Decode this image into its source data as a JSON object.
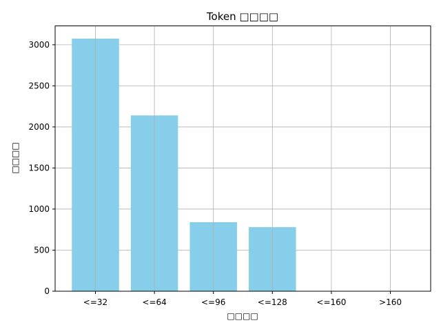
{
  "chart_data": {
    "type": "bar",
    "title": "Token □□□□",
    "xlabel": "□□□□",
    "ylabel": "□□□□",
    "categories": [
      "<=32",
      "<=64",
      "<=96",
      "<=128",
      "<=160",
      ">160"
    ],
    "values": [
      3075,
      2140,
      840,
      780,
      0,
      0
    ],
    "ylim": [
      0,
      3230
    ],
    "yticks": [
      0,
      500,
      1000,
      1500,
      2000,
      2500,
      3000
    ],
    "grid": true,
    "bar_color": "#87CEEB",
    "grid_color": "#b0b0b0"
  }
}
